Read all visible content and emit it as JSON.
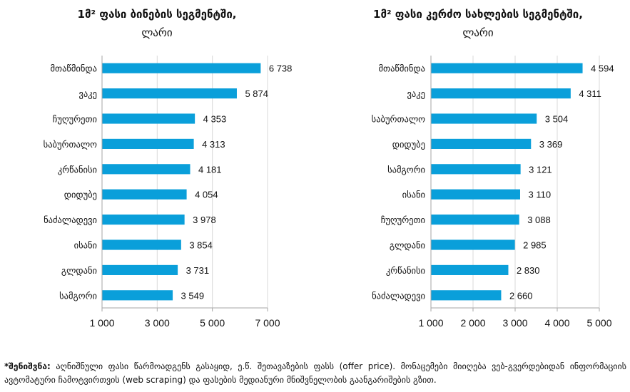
{
  "colors": {
    "bar": "#0A9FDA",
    "grid": "#D9D9D9",
    "axis": "#A6A6A6"
  },
  "chart_data": [
    {
      "type": "bar",
      "orientation": "horizontal",
      "title": "1მ² ფასი ბინების სეგმენტში,",
      "unit": "ლარი",
      "categories": [
        "მთაწმინდა",
        "ვაკე",
        "ჩუღურეთი",
        "საბურთალო",
        "კრწანისი",
        "დიდუბე",
        "ნაძალადევი",
        "ისანი",
        "გლდანი",
        "სამგორი"
      ],
      "values": [
        6738,
        5874,
        4353,
        4313,
        4181,
        4054,
        3978,
        3854,
        3731,
        3549
      ],
      "value_labels": [
        "6 738",
        "5 874",
        "4 353",
        "4 313",
        "4 181",
        "4 054",
        "3 978",
        "3 854",
        "3 731",
        "3 549"
      ],
      "xlim": [
        1000,
        7000
      ],
      "ticks": [
        1000,
        3000,
        5000,
        7000
      ],
      "tick_labels": [
        "1 000",
        "3 000",
        "5 000",
        "7 000"
      ],
      "grid": true,
      "legend": "none"
    },
    {
      "type": "bar",
      "orientation": "horizontal",
      "title": "1მ² ფასი კერძო სახლების სეგმენტში,",
      "unit": "ლარი",
      "categories": [
        "მთაწმინდა",
        "ვაკე",
        "საბურთალო",
        "დიდუბე",
        "სამგორი",
        "ისანი",
        "ჩუღურეთი",
        "გლდანი",
        "კრწანისი",
        "ნაძალადევი"
      ],
      "values": [
        4594,
        4311,
        3504,
        3369,
        3121,
        3110,
        3088,
        2985,
        2830,
        2660
      ],
      "value_labels": [
        "4 594",
        "4 311",
        "3 504",
        "3 369",
        "3 121",
        "3 110",
        "3 088",
        "2 985",
        "2 830",
        "2 660"
      ],
      "xlim": [
        1000,
        5000
      ],
      "ticks": [
        1000,
        2000,
        3000,
        4000,
        5000
      ],
      "tick_labels": [
        "1 000",
        "2 000",
        "3 000",
        "4 000",
        "5 000"
      ],
      "grid": true,
      "legend": "none"
    }
  ],
  "note": {
    "label": "*შენიშვნა:",
    "text": " აღნიშნული ფასი წარმოადგენს გასაყიდ, ე.წ. შეთავაზების ფასს (offer price). მონაცემები მიიღება ვებ-გვერდებიდან ინფორმაციის ავტომატური ჩამოტვირთვის (web scraping) და ფასების მედიანური მნიშვნელობის გაანგარიშების გზით."
  }
}
